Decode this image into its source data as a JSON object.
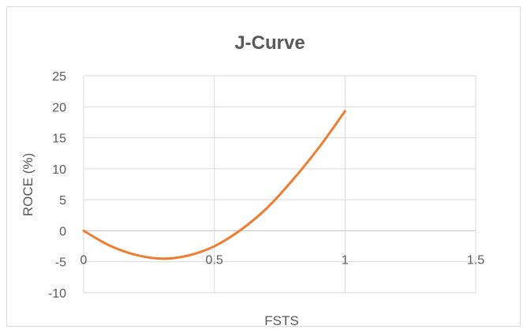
{
  "chart_data": {
    "type": "line",
    "title": "J-Curve",
    "xlabel": "FSTS",
    "ylabel": "ROCE (%)",
    "xlim": [
      0,
      1.5
    ],
    "ylim": [
      -10,
      25
    ],
    "xticks": [
      "0",
      "0.5",
      "1",
      "1.5"
    ],
    "yticks": [
      "25",
      "20",
      "15",
      "10",
      "5",
      "0",
      "-5",
      "-10"
    ],
    "grid": true,
    "legend": "none",
    "series": [
      {
        "color": "#ed7d31",
        "x": [
          0,
          0.1,
          0.2,
          0.3,
          0.4,
          0.5,
          0.6,
          0.7,
          0.8,
          0.9,
          1.0
        ],
        "y": [
          0,
          -2.4,
          -3.9,
          -4.5,
          -4.0,
          -2.5,
          0.1,
          3.6,
          8.2,
          13.4,
          19.3
        ]
      }
    ]
  }
}
